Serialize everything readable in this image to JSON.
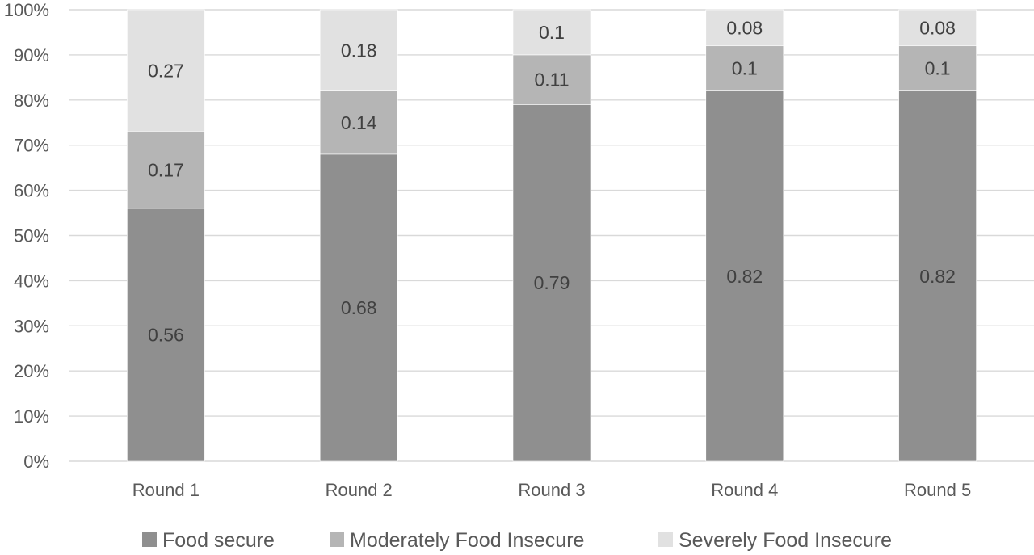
{
  "chart_data": {
    "type": "bar",
    "stacked": true,
    "percent_axis": true,
    "title": "",
    "xlabel": "",
    "ylabel": "",
    "categories": [
      "Round 1",
      "Round 2",
      "Round 3",
      "Round 4",
      "Round 5"
    ],
    "series": [
      {
        "name": "Food secure",
        "values": [
          0.56,
          0.68,
          0.79,
          0.82,
          0.82
        ],
        "labels": [
          "0.56",
          "0.68",
          "0.79",
          "0.82",
          "0.82"
        ],
        "color": "#8f8f8f"
      },
      {
        "name": "Moderately Food Insecure",
        "values": [
          0.17,
          0.14,
          0.11,
          0.1,
          0.1
        ],
        "labels": [
          "0.17",
          "0.14",
          "0.11",
          "0.1",
          "0.1"
        ],
        "color": "#b5b5b5"
      },
      {
        "name": "Severely Food Insecure",
        "values": [
          0.27,
          0.18,
          0.1,
          0.08,
          0.08
        ],
        "labels": [
          "0.27",
          "0.18",
          "0.1",
          "0.08",
          "0.08"
        ],
        "color": "#e1e1e1"
      }
    ],
    "yticks": [
      "0%",
      "10%",
      "20%",
      "30%",
      "40%",
      "50%",
      "60%",
      "70%",
      "80%",
      "90%",
      "100%"
    ],
    "ylim": [
      0,
      1
    ],
    "grid": true,
    "legend_position": "bottom"
  }
}
